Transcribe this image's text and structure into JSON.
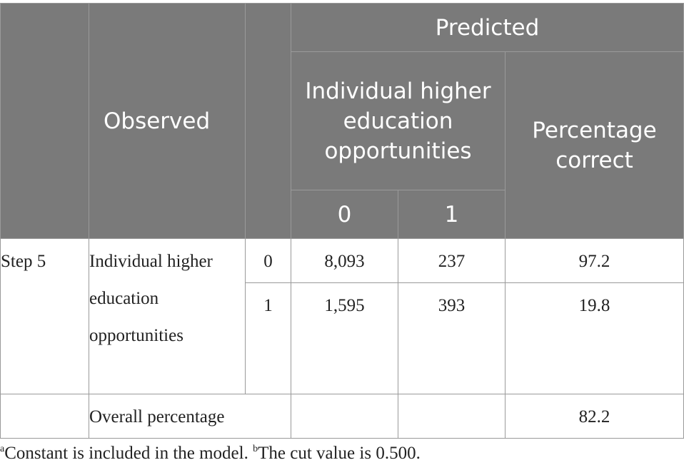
{
  "table": {
    "header": {
      "observed": "Observed",
      "predicted": "Predicted",
      "group_label": "Individual higher education opportunities",
      "pct_label": "Percentage correct",
      "col0": "0",
      "col1": "1"
    },
    "step": "Step 5",
    "row_label": "Individual higher education opportunities",
    "rows": [
      {
        "cls": "0",
        "c0": "8,093",
        "c1": "237",
        "pct": "97.2"
      },
      {
        "cls": "1",
        "c0": "1,595",
        "c1": "393",
        "pct": "19.8"
      }
    ],
    "overall": {
      "label": "Overall percentage",
      "pct": "82.2"
    }
  },
  "footnote": {
    "a_marker": "a",
    "a_text": "Constant is included in the model.",
    "b_marker": "b",
    "b_text": "The cut value is 0.500."
  }
}
